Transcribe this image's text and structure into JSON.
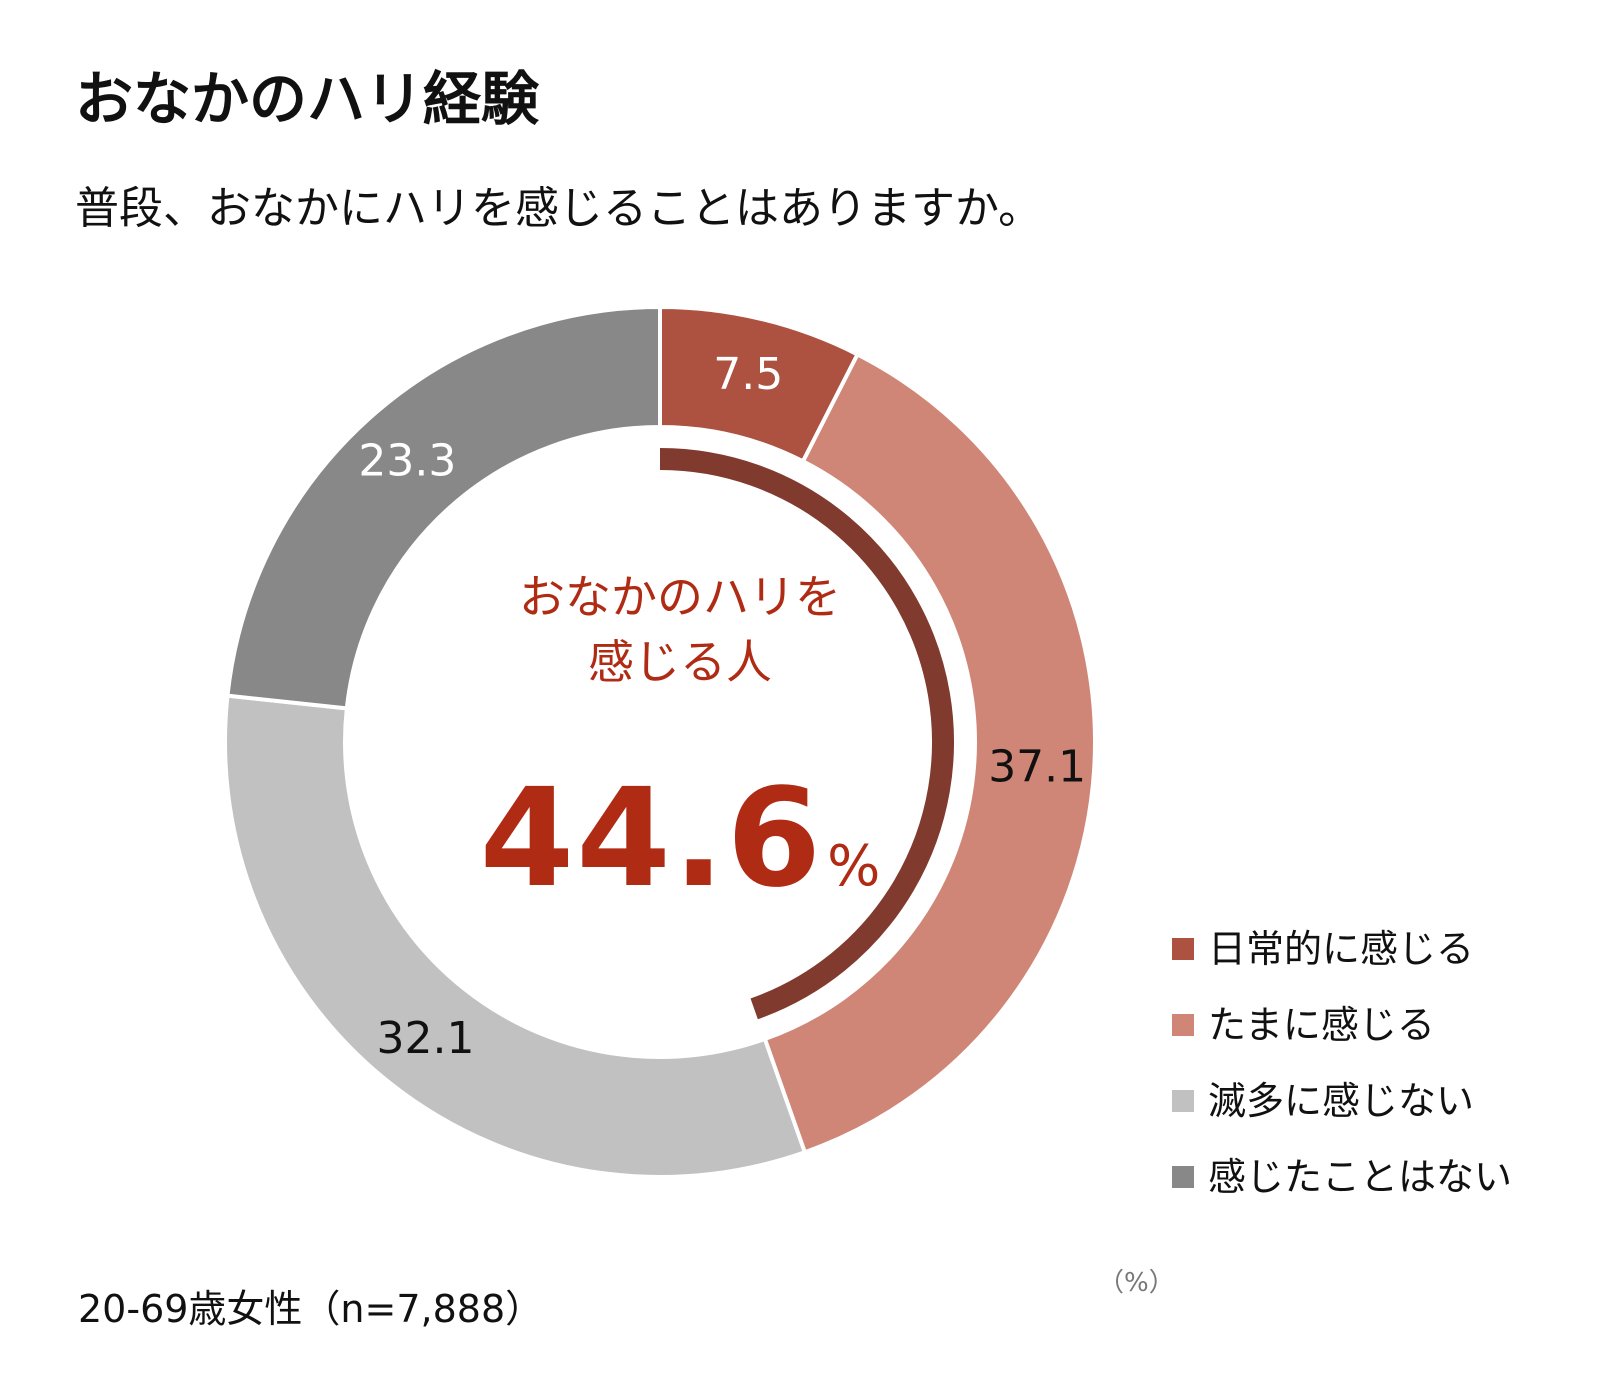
{
  "chart_data": {
    "type": "pie",
    "variant": "donut",
    "title": "おなかのハリ経験",
    "subtitle": "普段、おなかにハリを感じることはありますか。",
    "unit_note": "（%）",
    "sample_note": "20-69歳女性（n=7,888）",
    "legend_position": "bottom-right",
    "slices": [
      {
        "label": "日常的に感じる",
        "value": 7.5,
        "display": "7.5",
        "color": "#ad5140",
        "label_color": "#ffffff"
      },
      {
        "label": "たまに感じる",
        "value": 37.1,
        "display": "37.1",
        "color": "#cf8677",
        "label_color": "#111111"
      },
      {
        "label": "滅多に感じない",
        "value": 32.1,
        "display": "32.1",
        "color": "#c1c1c1",
        "label_color": "#111111"
      },
      {
        "label": "感じたことはない",
        "value": 23.3,
        "display": "23.3",
        "color": "#888888",
        "label_color": "#ffffff"
      }
    ],
    "summary": {
      "label_line1": "おなかのハリを",
      "label_line2": "感じる人",
      "value": 44.6,
      "display": "44.6",
      "unit": "%",
      "color": "#b02b14",
      "arc_color": "#813a2e"
    }
  }
}
